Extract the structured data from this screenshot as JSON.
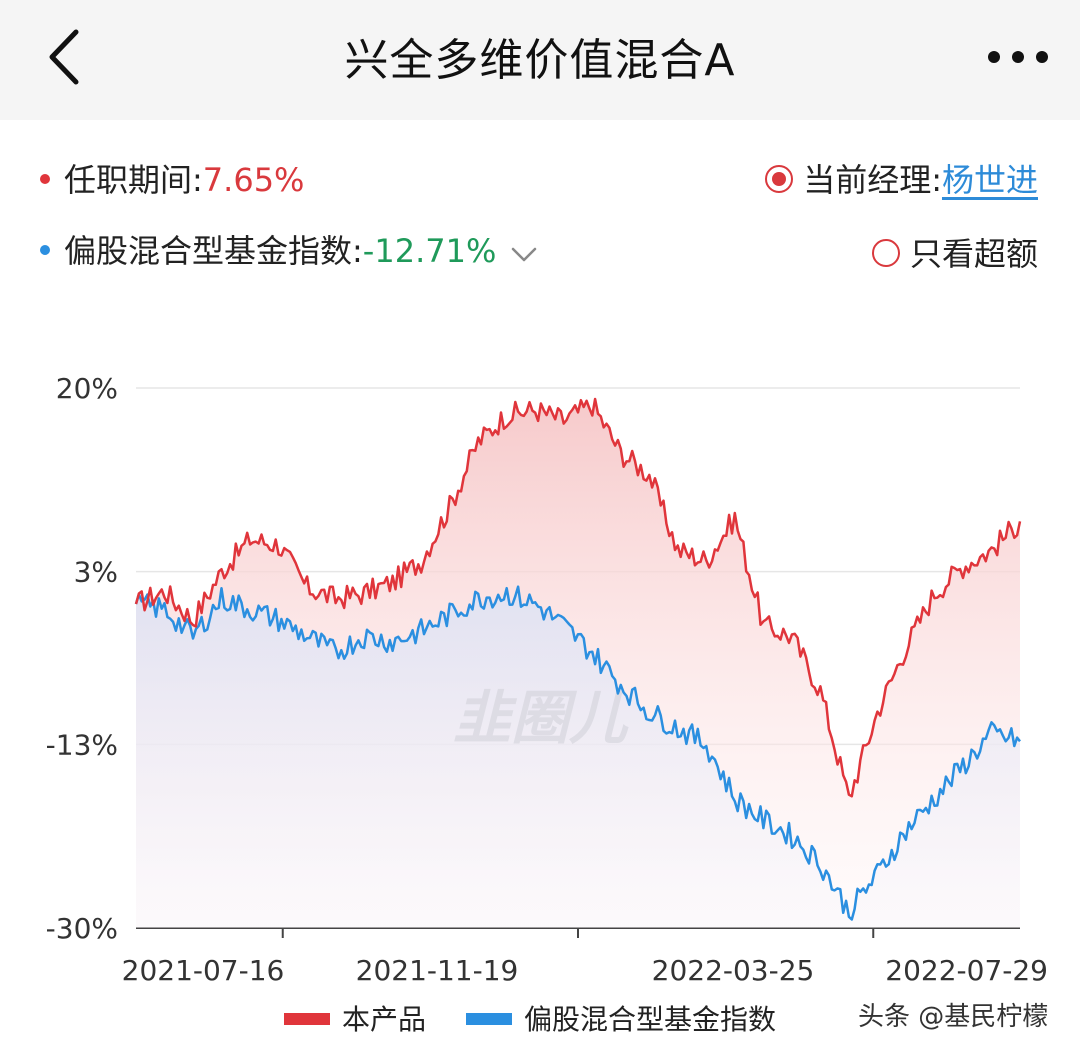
{
  "header": {
    "title": "兴全多维价值混合A"
  },
  "tenure": {
    "label": "任职期间:",
    "value": "7.65%"
  },
  "manager": {
    "label": "当前经理:",
    "name": "杨世进"
  },
  "benchmark": {
    "label": "偏股混合型基金指数:",
    "value": "-12.71%"
  },
  "excess": {
    "label": "只看超额"
  },
  "legend": {
    "product": "本产品",
    "index": "偏股混合型基金指数"
  },
  "source": {
    "text": "头条 @基民柠檬"
  },
  "watermark": {
    "text": "韭圈儿"
  },
  "colors": {
    "product": "#e0353b",
    "index": "#2b8fe0"
  },
  "chart_data": {
    "type": "line",
    "y_ticks": [
      "20%",
      "3%",
      "-13%",
      "-30%"
    ],
    "y_tick_values": [
      20,
      3,
      -13,
      -30
    ],
    "ylim": [
      -30,
      20
    ],
    "x_ticks": [
      "2021-07-16",
      "2021-11-19",
      "2022-03-25",
      "2022-07-29"
    ],
    "x": [
      "2021-05-28",
      "2021-06-11",
      "2021-06-25",
      "2021-07-09",
      "2021-07-23",
      "2021-08-06",
      "2021-08-20",
      "2021-09-03",
      "2021-09-17",
      "2021-10-01",
      "2021-10-15",
      "2021-10-29",
      "2021-11-12",
      "2021-11-26",
      "2021-12-10",
      "2021-12-24",
      "2022-01-07",
      "2022-01-21",
      "2022-02-04",
      "2022-02-18",
      "2022-03-04",
      "2022-03-18",
      "2022-04-01",
      "2022-04-15",
      "2022-04-29",
      "2022-05-13",
      "2022-05-27",
      "2022-06-10",
      "2022-06-24",
      "2022-07-08",
      "2022-07-22",
      "2022-08-05"
    ],
    "series": [
      {
        "name": "本产品",
        "values": [
          0.0,
          1.2,
          -1.5,
          3.0,
          6.0,
          5.5,
          1.5,
          0.5,
          1.0,
          2.0,
          4.0,
          9.0,
          15.0,
          17.5,
          18.0,
          17.0,
          18.5,
          14.0,
          12.0,
          5.0,
          4.0,
          8.0,
          -2.0,
          -3.0,
          -8.0,
          -18.0,
          -10.0,
          -4.0,
          1.0,
          3.5,
          5.0,
          7.65
        ]
      },
      {
        "name": "偏股混合型基金指数",
        "values": [
          0.0,
          -0.5,
          -3.0,
          0.5,
          -0.5,
          -1.5,
          -3.0,
          -4.5,
          -3.0,
          -3.5,
          -2.5,
          -1.0,
          0.5,
          1.0,
          0.0,
          -2.0,
          -4.5,
          -7.5,
          -10.0,
          -11.5,
          -13.0,
          -18.0,
          -20.0,
          -21.5,
          -24.0,
          -28.5,
          -25.0,
          -21.0,
          -18.0,
          -15.0,
          -12.0,
          -12.71
        ]
      }
    ]
  }
}
